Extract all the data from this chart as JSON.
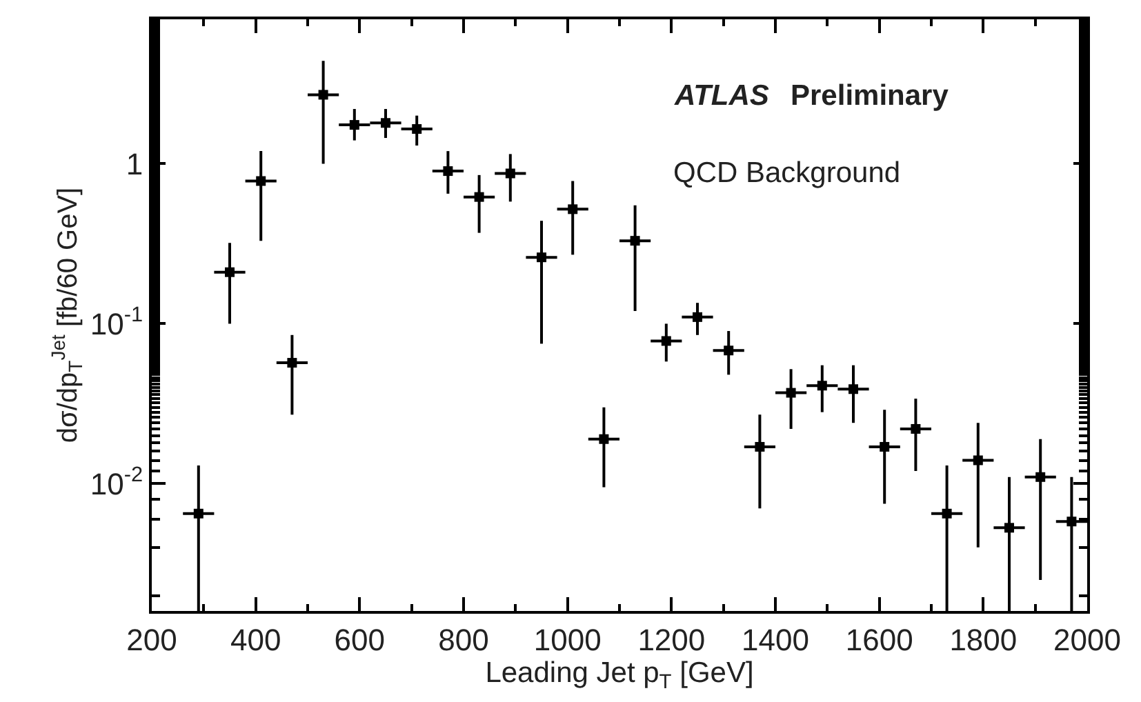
{
  "chart_data": {
    "type": "scatter",
    "xlabel": "Leading Jet p$_{T}$ [GeV]",
    "ylabel": "dσ/dp$_{T}$$^{Jet}$ [fb/60 GeV]",
    "annotations": [
      "ATLAS",
      "Preliminary",
      "QCD Background"
    ],
    "x": [
      290,
      350,
      410,
      470,
      530,
      590,
      650,
      710,
      770,
      830,
      890,
      950,
      1010,
      1070,
      1130,
      1190,
      1250,
      1310,
      1370,
      1430,
      1490,
      1550,
      1610,
      1670,
      1730,
      1790,
      1850,
      1910,
      1970
    ],
    "series": [
      {
        "color": "#000000",
        "values": [
          0.0065,
          0.21,
          0.78,
          0.057,
          2.7,
          1.75,
          1.8,
          1.65,
          0.9,
          0.62,
          0.87,
          0.26,
          0.52,
          0.019,
          0.33,
          0.078,
          0.11,
          0.068,
          0.017,
          0.037,
          0.041,
          0.039,
          0.017,
          0.022,
          0.0065,
          0.014,
          0.0053,
          0.011,
          0.0058
        ],
        "errors": [
          [
            0.0016,
            0.013
          ],
          [
            0.1,
            0.32
          ],
          [
            0.33,
            1.2
          ],
          [
            0.027,
            0.085
          ],
          [
            1.0,
            4.4
          ],
          [
            1.4,
            2.2
          ],
          [
            1.45,
            2.2
          ],
          [
            1.3,
            2.0
          ],
          [
            0.65,
            1.2
          ],
          [
            0.37,
            0.85
          ],
          [
            0.58,
            1.15
          ],
          [
            0.075,
            0.44
          ],
          [
            0.27,
            0.78
          ],
          [
            0.0095,
            0.03
          ],
          [
            0.12,
            0.55
          ],
          [
            0.058,
            0.1
          ],
          [
            0.085,
            0.135
          ],
          [
            0.048,
            0.09
          ],
          [
            0.007,
            0.027
          ],
          [
            0.022,
            0.052
          ],
          [
            0.028,
            0.055
          ],
          [
            0.024,
            0.055
          ],
          [
            0.0075,
            0.029
          ],
          [
            0.012,
            0.034
          ],
          [
            0.0016,
            0.013
          ],
          [
            0.004,
            0.024
          ],
          [
            0.0016,
            0.011
          ],
          [
            0.0025,
            0.019
          ],
          [
            0.0016,
            0.011
          ]
        ],
        "xerrors": [
          30,
          30,
          30,
          30,
          30,
          30,
          30,
          30,
          30,
          30,
          30,
          30,
          30,
          30,
          30,
          30,
          30,
          30,
          30,
          30,
          30,
          30,
          30,
          30,
          30,
          30,
          30,
          30,
          30
        ]
      }
    ],
    "xlim": [
      200,
      2000
    ],
    "xticks": [
      200,
      400,
      600,
      800,
      1000,
      1200,
      1400,
      1600,
      1800,
      2000
    ],
    "ylim": [
      0.0016,
      8
    ],
    "yticks": [
      {
        "value": 0.01,
        "label": "10$^{-2}$"
      },
      {
        "value": 0.1,
        "label": "10$^{-1}$"
      },
      1
    ],
    "log": "y",
    "marker": "square"
  }
}
